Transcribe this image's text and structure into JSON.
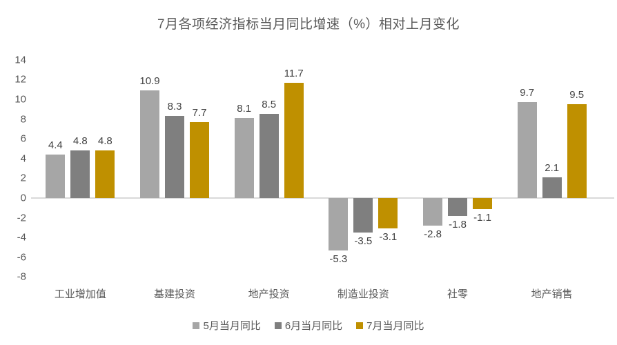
{
  "chart_data": {
    "type": "bar",
    "title": "7月各项经济指标当月同比增速（%）相对上月变化",
    "categories": [
      "工业增加值",
      "基建投资",
      "地产投资",
      "制造业投资",
      "社零",
      "地产销售"
    ],
    "series": [
      {
        "name": "5月当月同比",
        "color": "#A6A6A6",
        "values": [
          4.4,
          10.9,
          8.1,
          -5.3,
          -2.8,
          9.7
        ]
      },
      {
        "name": "6月当月同比",
        "color": "#7F7F7F",
        "values": [
          4.8,
          8.3,
          8.5,
          -3.5,
          -1.8,
          2.1
        ]
      },
      {
        "name": "7月当月同比",
        "color": "#BF9000",
        "values": [
          4.8,
          7.7,
          11.7,
          -3.1,
          -1.1,
          9.5
        ]
      }
    ],
    "ylim": [
      -8,
      14
    ],
    "ytick_step": 2,
    "grid": false,
    "value_labels": true,
    "legend_position": "bottom",
    "colors": {
      "title_text": "#595959",
      "axis_text": "#595959",
      "value_label_text": "#404040",
      "axis_line": "#D9D9D9",
      "background": "#FFFFFF"
    }
  }
}
